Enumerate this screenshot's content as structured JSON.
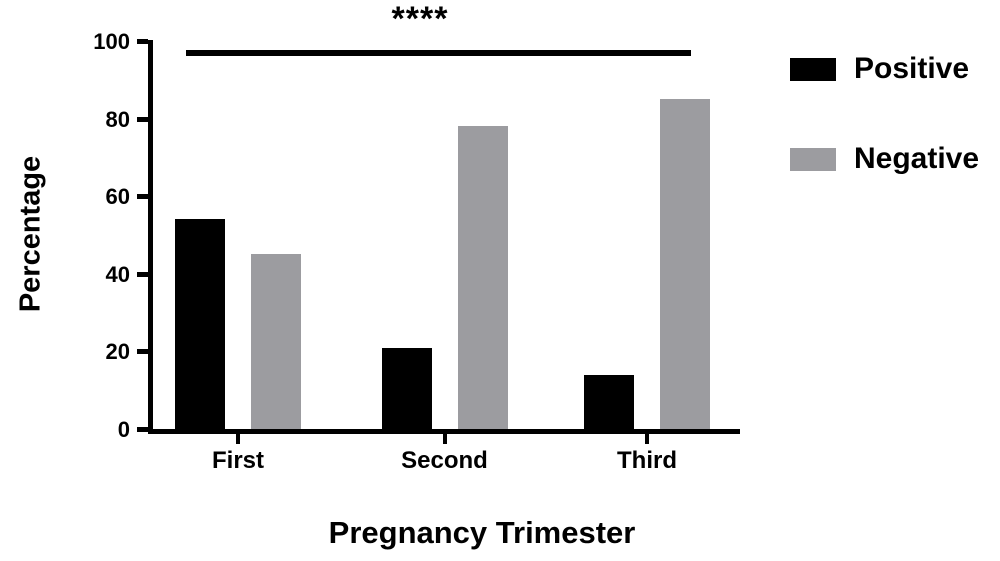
{
  "chart_data": {
    "type": "bar",
    "title": "",
    "xlabel": "Pregnancy Trimester",
    "ylabel": "Percentage",
    "categories": [
      "First",
      "Second",
      "Third"
    ],
    "series": [
      {
        "name": "Positive",
        "color": "#000000",
        "values": [
          54,
          21,
          14
        ]
      },
      {
        "name": "Negative",
        "color": "#9c9ca0",
        "values": [
          45,
          78,
          85
        ]
      }
    ],
    "ylim": [
      0,
      100
    ],
    "yticks": [
      0,
      20,
      40,
      60,
      80,
      100
    ],
    "grid": false,
    "legend_position": "right",
    "significance": {
      "label": "****",
      "y": 97,
      "from_category": "First",
      "to_category": "Third"
    }
  }
}
